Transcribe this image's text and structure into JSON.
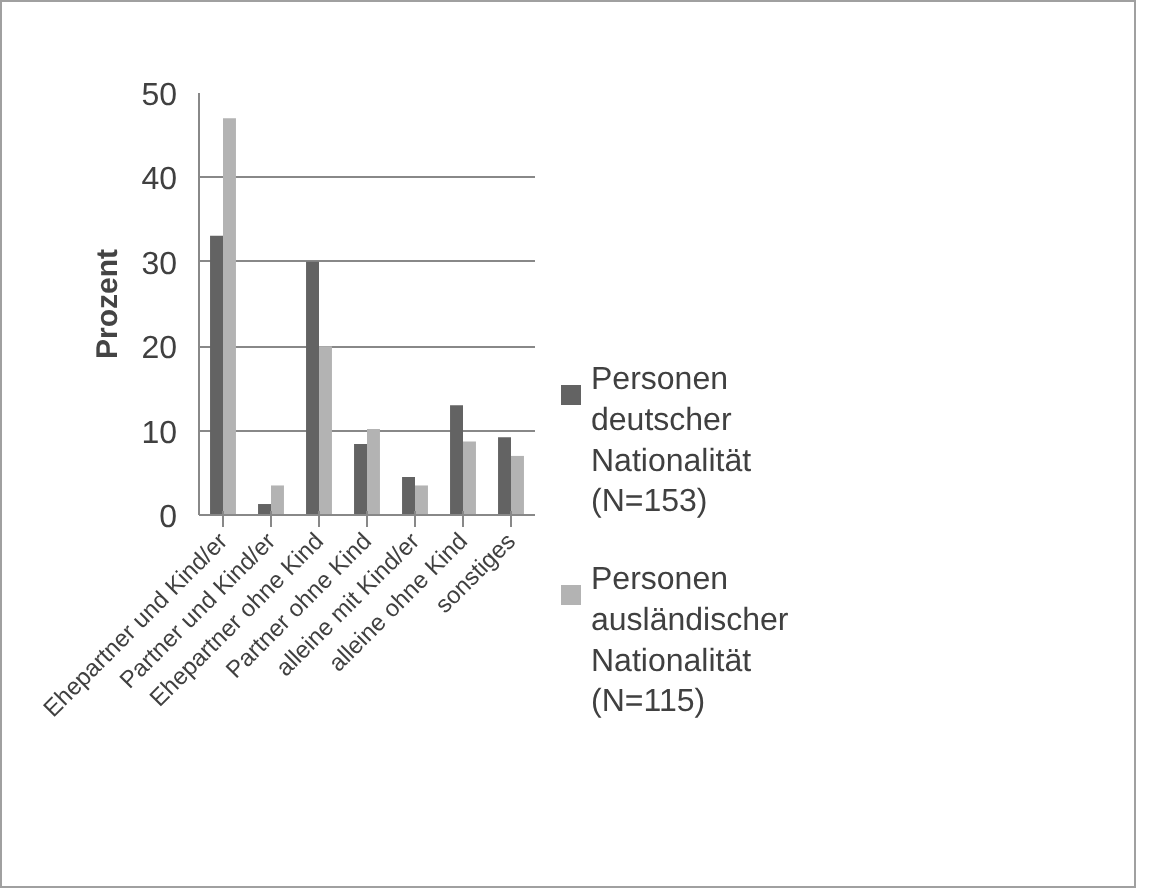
{
  "chart_data": {
    "type": "bar",
    "ylabel": "Prozent",
    "categories": [
      "Ehepartner und Kind/er",
      "Partner und Kind/er",
      "Ehepartner ohne Kind",
      "Partner ohne Kind",
      "alleine mit Kind/er",
      "alleine ohne Kind",
      "sonstiges"
    ],
    "series": [
      {
        "name": "Personen deutscher Nationalität (N=153)",
        "color": "#636363",
        "values": [
          33.1,
          1.3,
          30,
          8.4,
          4.5,
          13,
          9.2
        ]
      },
      {
        "name": "Personen ausländischer Nationalität (N=115)",
        "color": "#b3b3b3",
        "values": [
          47,
          3.5,
          20,
          10.2,
          3.5,
          8.7,
          7
        ]
      }
    ],
    "ylim": [
      0,
      50
    ],
    "yticks": [
      0,
      10,
      20,
      30,
      40,
      50
    ],
    "grid": "y",
    "legend": "right"
  }
}
